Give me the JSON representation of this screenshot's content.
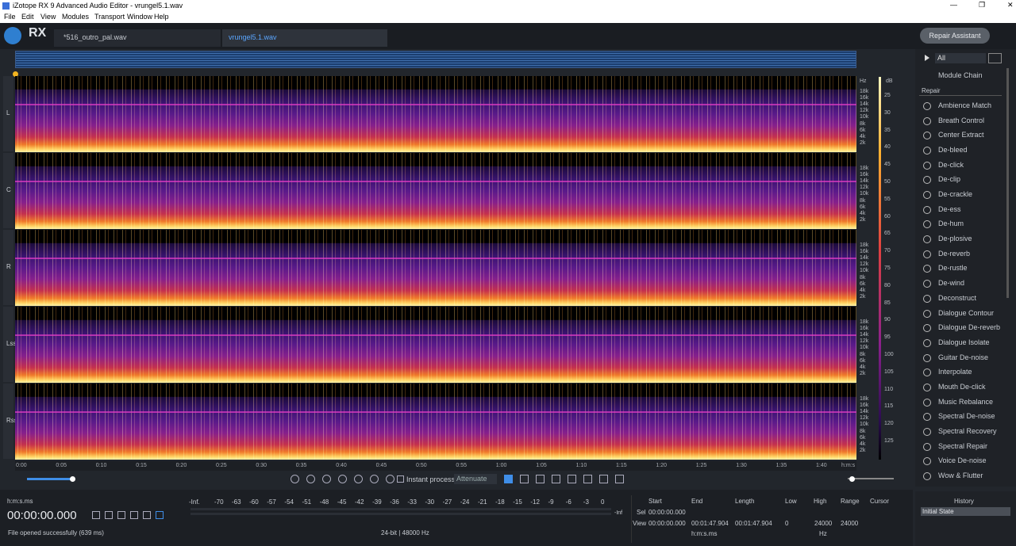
{
  "window": {
    "title": "iZotope RX 9 Advanced Audio Editor - vrungel5.1.wav"
  },
  "menu": [
    "File",
    "Edit",
    "View",
    "Modules",
    "Transport",
    "Window",
    "Help"
  ],
  "logo": "RX",
  "tabs": [
    "*516_outro_pal.wav",
    "vrungel5.1.wav"
  ],
  "repair_assistant": "Repair Assistant",
  "channels": [
    "L",
    "C",
    "R",
    "Lss",
    "Rss"
  ],
  "freq_unit": "Hz",
  "freq_labels": [
    "18k",
    "16k",
    "14k",
    "12k",
    "10k",
    "8k",
    "6k",
    "4k",
    "2k"
  ],
  "db_unit": "dB",
  "db_labels": [
    25,
    30,
    35,
    40,
    45,
    50,
    55,
    60,
    65,
    70,
    75,
    80,
    85,
    90,
    95,
    100,
    105,
    110,
    115,
    120,
    125
  ],
  "time_labels": [
    "0:00",
    "0:05",
    "0:10",
    "0:15",
    "0:20",
    "0:25",
    "0:30",
    "0:35",
    "0:40",
    "0:45",
    "0:50",
    "0:55",
    "1:00",
    "1:05",
    "1:10",
    "1:15",
    "1:20",
    "1:25",
    "1:30",
    "1:35",
    "1:40"
  ],
  "time_unit": "h:m:s",
  "toolbar": {
    "instant_process": "Instant process",
    "mode": "Attenuate"
  },
  "modules_panel": {
    "filter": "All",
    "module_chain": "Module Chain",
    "section": "Repair",
    "modules": [
      "Ambience Match",
      "Breath Control",
      "Center Extract",
      "De-bleed",
      "De-click",
      "De-clip",
      "De-crackle",
      "De-ess",
      "De-hum",
      "De-plosive",
      "De-reverb",
      "De-rustle",
      "De-wind",
      "Deconstruct",
      "Dialogue Contour",
      "Dialogue De-reverb",
      "Dialogue Isolate",
      "Guitar De-noise",
      "Interpolate",
      "Mouth De-click",
      "Music Rebalance",
      "Spectral De-noise",
      "Spectral Recovery",
      "Spectral Repair",
      "Voice De-noise",
      "Wow & Flutter"
    ]
  },
  "status": {
    "time_format": "h:m:s.ms",
    "time": "00:00:00.000",
    "message": "File opened successfully (639 ms)",
    "format": "24-bit | 48000 Hz"
  },
  "meter": {
    "labels": [
      "-Inf.",
      -70,
      -63,
      -60,
      -57,
      -54,
      -51,
      -48,
      -45,
      -42,
      -39,
      -36,
      -33,
      -30,
      -27,
      -24,
      -21,
      -18,
      -15,
      -12,
      -9,
      -6,
      -3,
      0
    ],
    "peak": "-Inf"
  },
  "selection": {
    "headers": [
      "Start",
      "End",
      "Length"
    ],
    "rows": [
      [
        "Sel",
        "00:00:00.000"
      ],
      [
        "View",
        "00:00:00.000",
        "00:01:47.904",
        "00:01:47.904"
      ]
    ],
    "unit": "h:m:s.ms",
    "freq_headers": [
      "Low",
      "High",
      "Range"
    ],
    "freq_values": [
      0,
      24000,
      24000
    ],
    "freq_unit": "Hz",
    "cursor": "Cursor"
  },
  "history": {
    "title": "History",
    "items": [
      "Initial State"
    ]
  }
}
